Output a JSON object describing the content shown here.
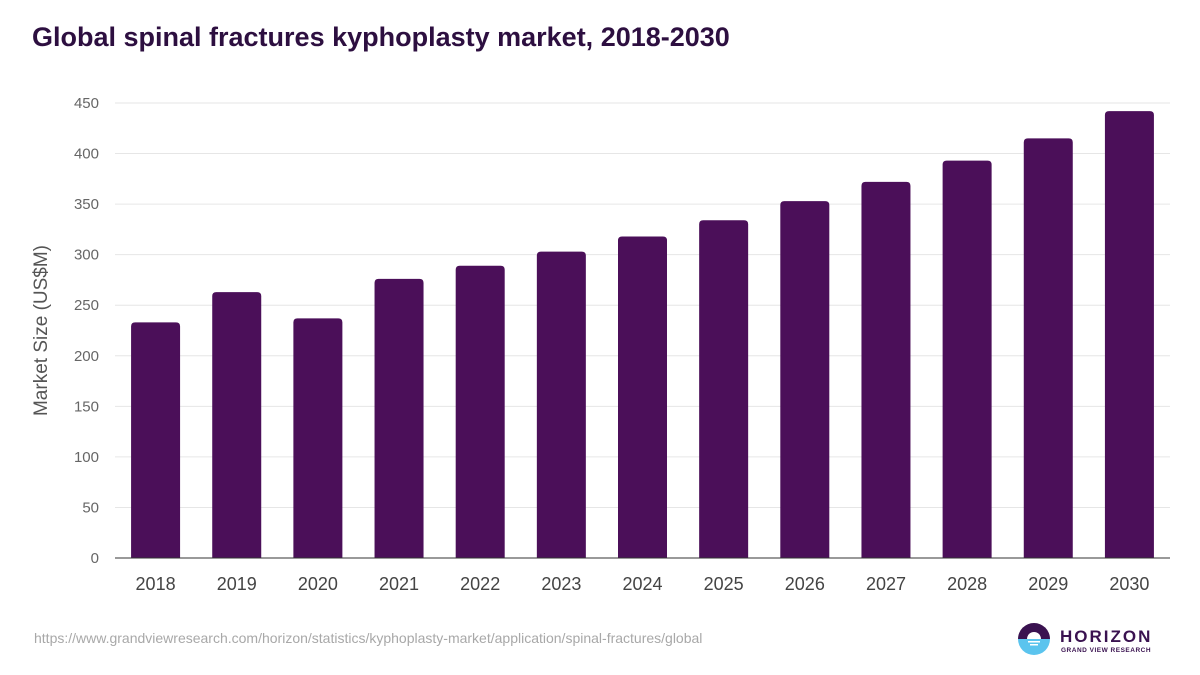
{
  "chart_data": {
    "type": "bar",
    "title": "Global spinal fractures kyphoplasty market, 2018-2030",
    "xlabel": "",
    "ylabel": "Market Size (US$M)",
    "ylim": [
      0,
      450
    ],
    "yticks": [
      0,
      50,
      100,
      150,
      200,
      250,
      300,
      350,
      400,
      450
    ],
    "grid": true,
    "categories": [
      "2018",
      "2019",
      "2020",
      "2021",
      "2022",
      "2023",
      "2024",
      "2025",
      "2026",
      "2027",
      "2028",
      "2029",
      "2030"
    ],
    "values": [
      233,
      263,
      237,
      276,
      289,
      303,
      318,
      334,
      353,
      372,
      393,
      415,
      442
    ],
    "bar_color": "#4b0f59"
  },
  "footer": {
    "source_url": "https://www.grandviewresearch.com/horizon/statistics/kyphoplasty-market/application/spinal-fractures/global",
    "logo_name": "HORIZON",
    "logo_subtitle": "GRAND VIEW RESEARCH"
  }
}
